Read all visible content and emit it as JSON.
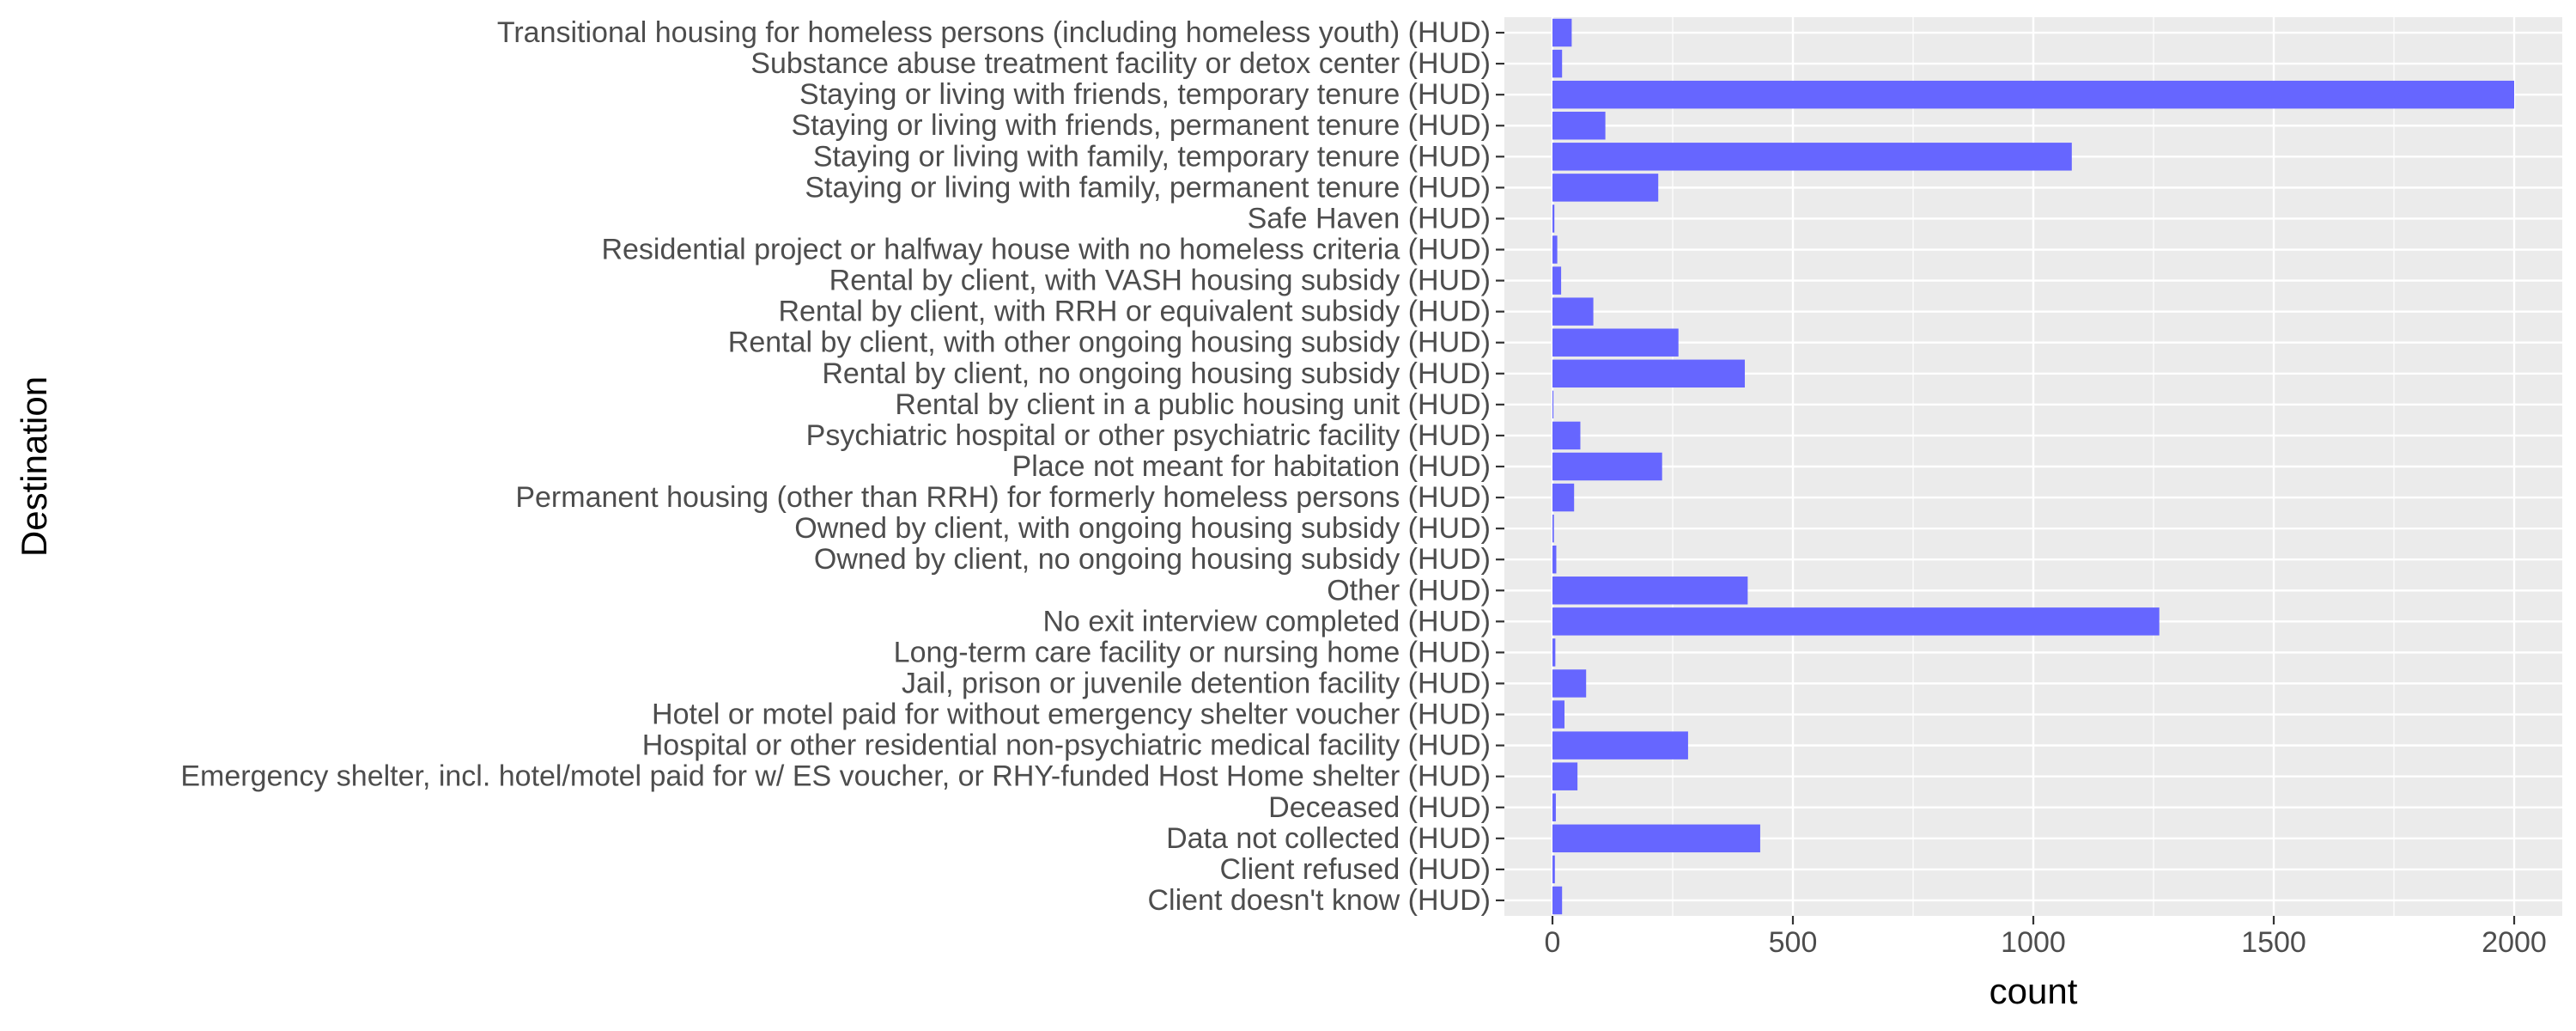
{
  "chart_data": {
    "type": "bar",
    "orientation": "horizontal",
    "xlabel": "count",
    "ylabel": "Destination",
    "xlim": [
      -100,
      2100
    ],
    "x_ticks": [
      0,
      500,
      1000,
      1500,
      2000
    ],
    "x_tick_labels": [
      "0",
      "500",
      "1000",
      "1500",
      "2000"
    ],
    "grid": true,
    "bar_color": "#6666ff",
    "panel_background": "#ebebeb",
    "gridline_color": "#ffffff",
    "categories": [
      "Transitional housing for homeless persons (including homeless youth) (HUD)",
      "Substance abuse treatment facility or detox center (HUD)",
      "Staying or living with friends, temporary tenure (HUD)",
      "Staying or living with friends, permanent tenure (HUD)",
      "Staying or living with family, temporary tenure (HUD)",
      "Staying or living with family, permanent tenure (HUD)",
      "Safe Haven (HUD)",
      "Residential project or halfway house with no homeless criteria (HUD)",
      "Rental by client, with VASH housing subsidy (HUD)",
      "Rental by client, with RRH or equivalent subsidy (HUD)",
      "Rental by client, with other ongoing housing subsidy (HUD)",
      "Rental by client, no ongoing housing subsidy (HUD)",
      "Rental by client in a public housing unit (HUD)",
      "Psychiatric hospital or other psychiatric facility (HUD)",
      "Place not meant for habitation (HUD)",
      "Permanent housing (other than RRH) for formerly homeless persons (HUD)",
      "Owned by client, with ongoing housing subsidy (HUD)",
      "Owned by client, no ongoing housing subsidy (HUD)",
      "Other (HUD)",
      "No exit interview completed (HUD)",
      "Long-term care facility or nursing home (HUD)",
      "Jail, prison or juvenile detention facility (HUD)",
      "Hotel or motel paid for without emergency shelter voucher (HUD)",
      "Hospital or other residential non-psychiatric medical facility (HUD)",
      "Emergency shelter, incl. hotel/motel paid for w/ ES voucher, or RHY-funded Host Home shelter (HUD)",
      "Deceased (HUD)",
      "Data not collected (HUD)",
      "Client refused (HUD)",
      "Client doesn't know (HUD)"
    ],
    "values": [
      40,
      20,
      2000,
      110,
      1080,
      220,
      4,
      10,
      18,
      85,
      262,
      400,
      2,
      58,
      228,
      45,
      3,
      8,
      406,
      1262,
      6,
      70,
      25,
      282,
      52,
      7,
      432,
      5,
      20
    ]
  }
}
